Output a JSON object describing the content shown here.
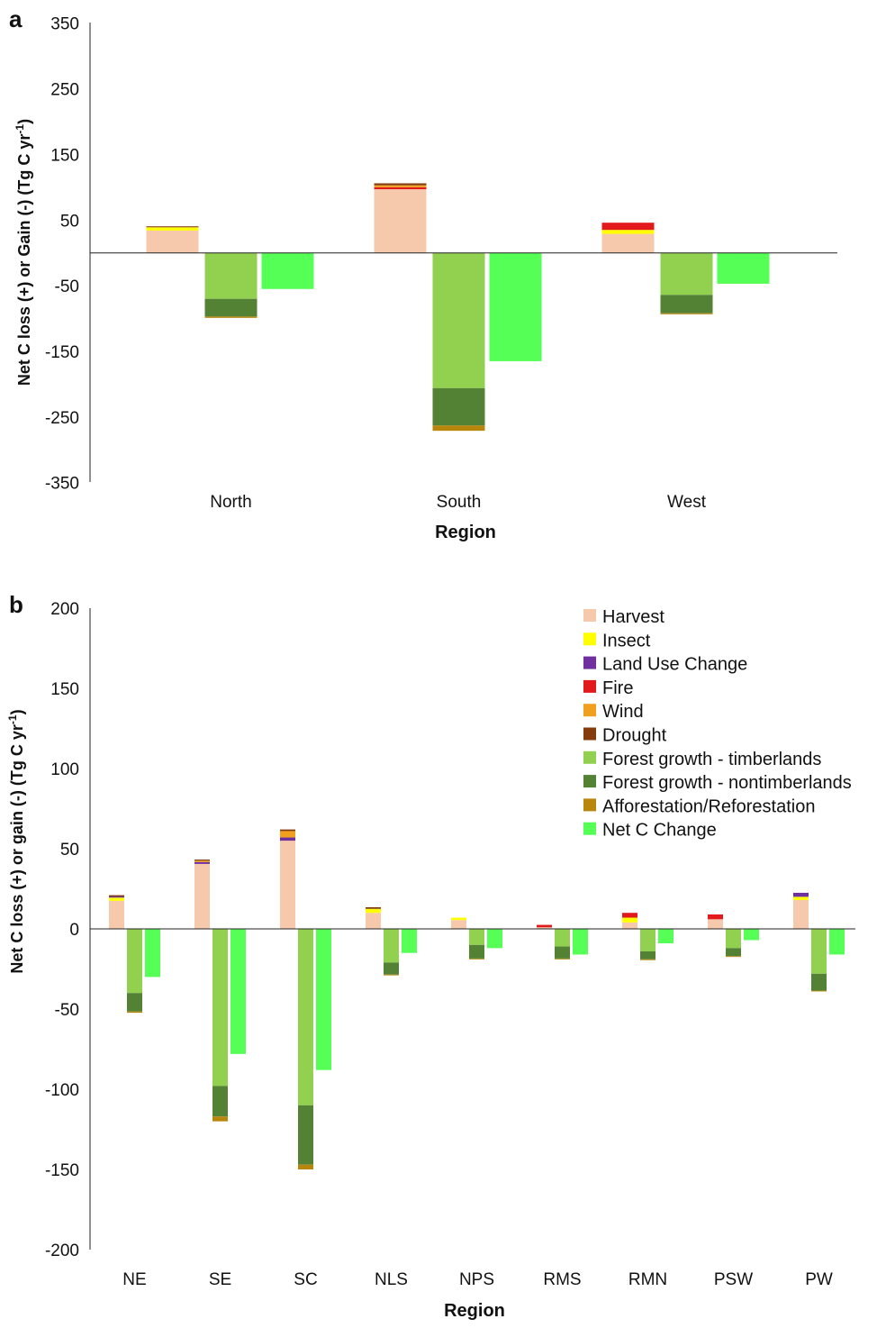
{
  "colors": {
    "harvest": "#f6c9ac",
    "insect": "#ffff00",
    "land_use_change": "#7030a0",
    "fire": "#e31a1c",
    "wind": "#f0a01e",
    "drought": "#843c0c",
    "forest_growth_timberlands": "#92d050",
    "forest_growth_nontimberlands": "#548235",
    "afforestation": "#b8860b",
    "net_c_change": "#55ff55"
  },
  "chart_data": [
    {
      "panel": "a",
      "type": "bar",
      "stacked": true,
      "xlabel": "Region",
      "ylabel_main": "Net C loss (+) or Gain (-) (Tg C yr",
      "ylabel_sup": "-1",
      "ylabel_end": ")",
      "ylim": [
        -350,
        350
      ],
      "yticks": [
        350,
        250,
        150,
        50,
        -50,
        -150,
        -250,
        -350
      ],
      "categories": [
        "North",
        "South",
        "West"
      ],
      "groups": [
        {
          "category": "North",
          "loss": [
            {
              "key": "harvest",
              "value": 34
            },
            {
              "key": "insect",
              "value": 5
            },
            {
              "key": "drought",
              "value": 1.5
            }
          ],
          "growth": [
            {
              "key": "forest_growth_timberlands",
              "value": -70
            },
            {
              "key": "forest_growth_nontimberlands",
              "value": -27
            },
            {
              "key": "afforestation",
              "value": -2
            }
          ],
          "net": -55
        },
        {
          "category": "South",
          "loss": [
            {
              "key": "harvest",
              "value": 97
            },
            {
              "key": "fire",
              "value": 3
            },
            {
              "key": "wind",
              "value": 3
            },
            {
              "key": "drought",
              "value": 3
            }
          ],
          "growth": [
            {
              "key": "forest_growth_timberlands",
              "value": -206
            },
            {
              "key": "forest_growth_nontimberlands",
              "value": -57
            },
            {
              "key": "afforestation",
              "value": -8
            }
          ],
          "net": -165
        },
        {
          "category": "West",
          "loss": [
            {
              "key": "harvest",
              "value": 29
            },
            {
              "key": "insect",
              "value": 6
            },
            {
              "key": "fire",
              "value": 11
            }
          ],
          "growth": [
            {
              "key": "forest_growth_timberlands",
              "value": -64
            },
            {
              "key": "forest_growth_nontimberlands",
              "value": -28
            },
            {
              "key": "afforestation",
              "value": -1.5
            }
          ],
          "net": -47
        }
      ]
    },
    {
      "panel": "b",
      "type": "bar",
      "stacked": true,
      "xlabel": "Region",
      "ylabel_main": "Net C loss (+) or gain (-) (Tg C yr",
      "ylabel_sup": "-1",
      "ylabel_end": ")",
      "ylim": [
        -200,
        200
      ],
      "yticks": [
        200,
        150,
        100,
        50,
        0,
        -50,
        -100,
        -150,
        -200
      ],
      "categories": [
        "NE",
        "SE",
        "SC",
        "NLS",
        "NPS",
        "RMS",
        "RMN",
        "PSW",
        "PW"
      ],
      "groups": [
        {
          "category": "NE",
          "loss": [
            {
              "key": "harvest",
              "value": 17.5
            },
            {
              "key": "insect",
              "value": 2
            },
            {
              "key": "land_use_change",
              "value": 0.7
            },
            {
              "key": "drought",
              "value": 0.8
            }
          ],
          "growth": [
            {
              "key": "forest_growth_timberlands",
              "value": -40
            },
            {
              "key": "forest_growth_nontimberlands",
              "value": -11.5
            },
            {
              "key": "afforestation",
              "value": -0.8
            }
          ],
          "net": -30
        },
        {
          "category": "SE",
          "loss": [
            {
              "key": "harvest",
              "value": 40.5
            },
            {
              "key": "land_use_change",
              "value": 1.2
            },
            {
              "key": "wind",
              "value": 0.8
            },
            {
              "key": "drought",
              "value": 0.7
            }
          ],
          "growth": [
            {
              "key": "forest_growth_timberlands",
              "value": -98
            },
            {
              "key": "forest_growth_nontimberlands",
              "value": -19
            },
            {
              "key": "afforestation",
              "value": -3
            }
          ],
          "net": -78
        },
        {
          "category": "SC",
          "loss": [
            {
              "key": "harvest",
              "value": 55
            },
            {
              "key": "land_use_change",
              "value": 2
            },
            {
              "key": "wind",
              "value": 4
            },
            {
              "key": "drought",
              "value": 1
            }
          ],
          "growth": [
            {
              "key": "forest_growth_timberlands",
              "value": -110
            },
            {
              "key": "forest_growth_nontimberlands",
              "value": -37
            },
            {
              "key": "afforestation",
              "value": -3
            }
          ],
          "net": -88
        },
        {
          "category": "NLS",
          "loss": [
            {
              "key": "harvest",
              "value": 10
            },
            {
              "key": "insect",
              "value": 2.5
            },
            {
              "key": "drought",
              "value": 1
            }
          ],
          "growth": [
            {
              "key": "forest_growth_timberlands",
              "value": -21
            },
            {
              "key": "forest_growth_nontimberlands",
              "value": -7.5
            },
            {
              "key": "afforestation",
              "value": -0.5
            }
          ],
          "net": -15
        },
        {
          "category": "NPS",
          "loss": [
            {
              "key": "harvest",
              "value": 5.5
            },
            {
              "key": "insect",
              "value": 1.5
            }
          ],
          "growth": [
            {
              "key": "forest_growth_timberlands",
              "value": -10
            },
            {
              "key": "forest_growth_nontimberlands",
              "value": -8.5
            },
            {
              "key": "afforestation",
              "value": -0.5
            }
          ],
          "net": -12
        },
        {
          "category": "RMS",
          "loss": [
            {
              "key": "harvest",
              "value": 1
            },
            {
              "key": "fire",
              "value": 1.5
            }
          ],
          "growth": [
            {
              "key": "forest_growth_timberlands",
              "value": -11
            },
            {
              "key": "forest_growth_nontimberlands",
              "value": -7.5
            },
            {
              "key": "afforestation",
              "value": -0.5
            }
          ],
          "net": -16
        },
        {
          "category": "RMN",
          "loss": [
            {
              "key": "harvest",
              "value": 4
            },
            {
              "key": "insect",
              "value": 3
            },
            {
              "key": "fire",
              "value": 3
            }
          ],
          "growth": [
            {
              "key": "forest_growth_timberlands",
              "value": -14
            },
            {
              "key": "forest_growth_nontimberlands",
              "value": -5
            },
            {
              "key": "afforestation",
              "value": -0.5
            }
          ],
          "net": -9
        },
        {
          "category": "PSW",
          "loss": [
            {
              "key": "harvest",
              "value": 6
            },
            {
              "key": "fire",
              "value": 3
            }
          ],
          "growth": [
            {
              "key": "forest_growth_timberlands",
              "value": -12
            },
            {
              "key": "forest_growth_nontimberlands",
              "value": -5
            },
            {
              "key": "afforestation",
              "value": -0.5
            }
          ],
          "net": -7
        },
        {
          "category": "PW",
          "loss": [
            {
              "key": "harvest",
              "value": 18
            },
            {
              "key": "insect",
              "value": 2
            },
            {
              "key": "land_use_change",
              "value": 2.5
            }
          ],
          "growth": [
            {
              "key": "forest_growth_timberlands",
              "value": -28
            },
            {
              "key": "forest_growth_nontimberlands",
              "value": -10.5
            },
            {
              "key": "afforestation",
              "value": -0.5
            }
          ],
          "net": -16
        }
      ],
      "legend": {
        "placement": "top-right",
        "items": [
          {
            "key": "harvest",
            "label": "Harvest"
          },
          {
            "key": "insect",
            "label": "Insect"
          },
          {
            "key": "land_use_change",
            "label": "Land Use Change"
          },
          {
            "key": "fire",
            "label": "Fire"
          },
          {
            "key": "wind",
            "label": "Wind"
          },
          {
            "key": "drought",
            "label": "Drought"
          },
          {
            "key": "forest_growth_timberlands",
            "label": "Forest growth - timberlands"
          },
          {
            "key": "forest_growth_nontimberlands",
            "label": "Forest growth - nontimberlands"
          },
          {
            "key": "afforestation",
            "label": "Afforestation/Reforestation"
          },
          {
            "key": "net_c_change",
            "label": "Net C Change"
          }
        ]
      }
    }
  ]
}
